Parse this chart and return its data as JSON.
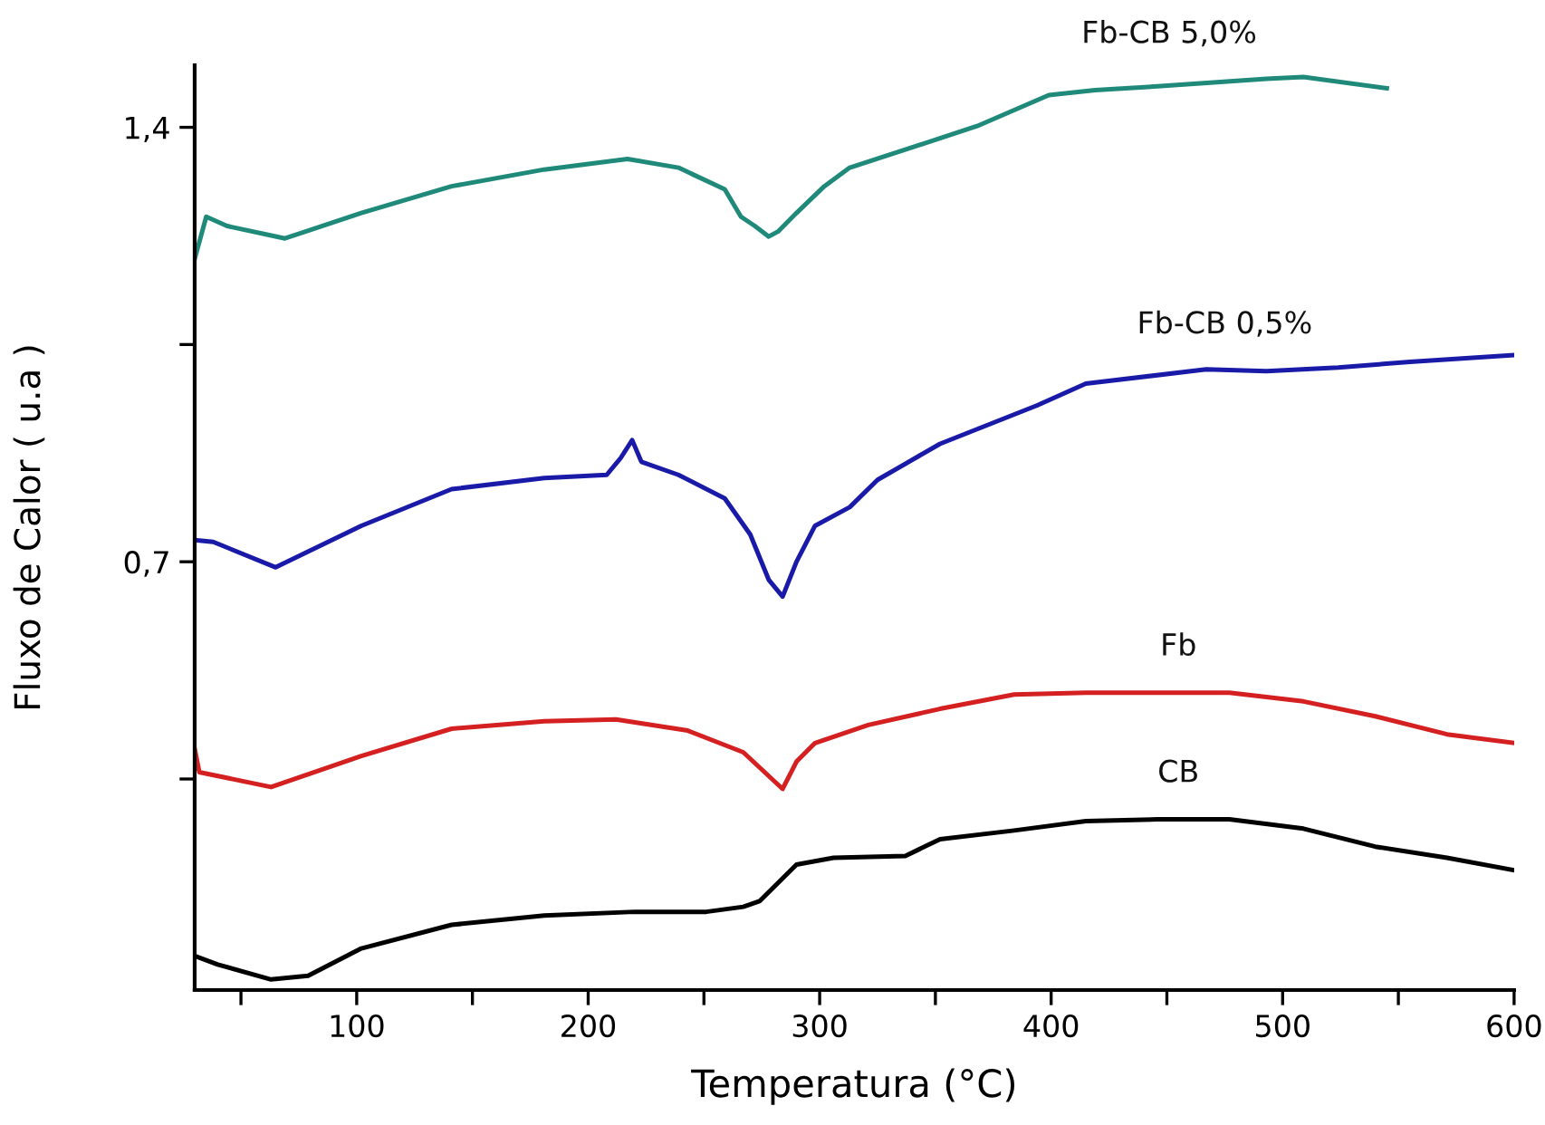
{
  "chart_data": {
    "type": "line",
    "xlabel": "Temperatura (°C)",
    "ylabel": "Fluxo de Calor ( u.a )",
    "xlim": [
      30,
      600
    ],
    "ylim": [
      0.01,
      1.5
    ],
    "xticks": [
      {
        "value": 50,
        "label": null
      },
      100,
      {
        "value": 150,
        "label": null
      },
      200,
      {
        "value": 250,
        "label": null
      },
      300,
      {
        "value": 350,
        "label": null
      },
      400,
      {
        "value": 450,
        "label": null
      },
      500,
      {
        "value": 550,
        "label": null
      },
      600
    ],
    "yticks": [
      {
        "value": 0.35,
        "label": null
      },
      {
        "value": 0.7,
        "label": "0,7"
      },
      {
        "value": 1.05,
        "label": null
      },
      {
        "value": 1.4,
        "label": "1,4"
      }
    ],
    "grid": false,
    "legend": false,
    "series": [
      {
        "name": "Fb-CB 5,0%",
        "color": "#1f8a7a",
        "x": [
          30,
          35,
          44,
          69,
          102,
          141,
          181,
          217,
          239,
          259,
          266,
          272,
          278,
          282,
          290,
          302,
          313,
          337,
          368,
          399,
          419,
          446,
          493,
          509,
          545
        ],
        "values": [
          1.188,
          1.256,
          1.241,
          1.221,
          1.262,
          1.305,
          1.332,
          1.349,
          1.335,
          1.3,
          1.256,
          1.241,
          1.224,
          1.232,
          1.262,
          1.305,
          1.335,
          1.364,
          1.402,
          1.452,
          1.46,
          1.466,
          1.478,
          1.481,
          1.463
        ]
      },
      {
        "name": "Fb-CB 0,5%",
        "color": "#1a1aa8",
        "x": [
          30,
          38,
          65,
          102,
          141,
          181,
          208,
          214,
          219,
          223,
          239,
          259,
          270,
          278,
          284,
          290,
          298,
          313,
          325,
          352,
          394,
          415,
          467,
          493,
          524,
          555,
          600
        ],
        "values": [
          0.735,
          0.732,
          0.691,
          0.758,
          0.817,
          0.835,
          0.84,
          0.867,
          0.896,
          0.861,
          0.84,
          0.802,
          0.744,
          0.671,
          0.644,
          0.7,
          0.758,
          0.788,
          0.832,
          0.89,
          0.952,
          0.987,
          1.01,
          1.007,
          1.013,
          1.022,
          1.033
        ]
      },
      {
        "name": "Fb",
        "color": "#d42020",
        "x": [
          30,
          32,
          63,
          102,
          141,
          181,
          212,
          243,
          267,
          284,
          290,
          298,
          321,
          352,
          384,
          415,
          446,
          477,
          509,
          540,
          571,
          600
        ],
        "values": [
          0.399,
          0.361,
          0.337,
          0.387,
          0.431,
          0.443,
          0.446,
          0.428,
          0.393,
          0.334,
          0.378,
          0.408,
          0.437,
          0.463,
          0.486,
          0.489,
          0.489,
          0.489,
          0.475,
          0.451,
          0.422,
          0.408
        ]
      },
      {
        "name": "CB",
        "color": "#000000",
        "x": [
          30,
          40,
          63,
          79,
          102,
          141,
          181,
          220,
          251,
          267,
          274,
          290,
          306,
          337,
          352,
          384,
          415,
          446,
          477,
          509,
          540,
          571,
          600
        ],
        "values": [
          0.065,
          0.051,
          0.027,
          0.033,
          0.077,
          0.115,
          0.13,
          0.136,
          0.136,
          0.144,
          0.153,
          0.212,
          0.223,
          0.226,
          0.253,
          0.267,
          0.282,
          0.285,
          0.285,
          0.27,
          0.241,
          0.223,
          0.203
        ]
      }
    ]
  }
}
